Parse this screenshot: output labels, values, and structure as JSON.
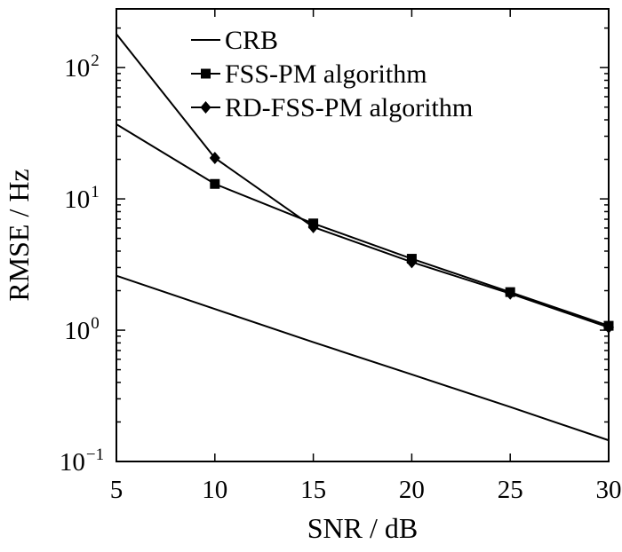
{
  "chart_data": {
    "type": "line",
    "xlabel": "SNR / dB",
    "ylabel": "RMSE / Hz",
    "xlim": [
      5,
      30
    ],
    "ylim": [
      0.1,
      300
    ],
    "yscale": "log",
    "grid": false,
    "legend_position": "top-right",
    "x_ticks": [
      5,
      10,
      15,
      20,
      25,
      30
    ],
    "y_ticks": [
      {
        "value": 0.1,
        "base": "10",
        "exp": "−1"
      },
      {
        "value": 1,
        "base": "10",
        "exp": "0"
      },
      {
        "value": 10,
        "base": "10",
        "exp": "1"
      },
      {
        "value": 100,
        "base": "10",
        "exp": "2"
      }
    ],
    "series": [
      {
        "name": "CRB",
        "marker": "none",
        "x": [
          5,
          10,
          15,
          20,
          25,
          30
        ],
        "values": [
          2.6,
          1.45,
          0.81,
          0.46,
          0.26,
          0.145
        ]
      },
      {
        "name": "FSS-PM algorithm",
        "marker": "square",
        "x": [
          5,
          10,
          15,
          20,
          25,
          30
        ],
        "values": [
          37,
          13,
          6.5,
          3.5,
          1.95,
          1.08
        ]
      },
      {
        "name": "RD-FSS-PM algorithm",
        "marker": "diamond",
        "x": [
          5,
          10,
          15,
          20,
          25,
          30
        ],
        "values": [
          180,
          20.5,
          6.1,
          3.3,
          1.9,
          1.05
        ]
      }
    ]
  }
}
